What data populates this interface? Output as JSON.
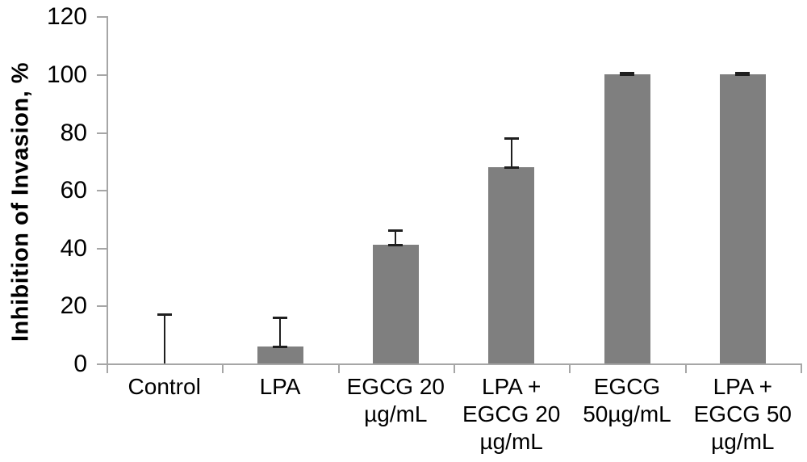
{
  "chart_data": {
    "type": "bar",
    "title": "",
    "ylabel": "Inhibition of Invasion, %",
    "xlabel": "",
    "ylim": [
      0,
      120
    ],
    "yticks": [
      0,
      20,
      40,
      60,
      80,
      100,
      120
    ],
    "categories": [
      [
        "Control"
      ],
      [
        "LPA"
      ],
      [
        "EGCG 20",
        "µg/mL"
      ],
      [
        "LPA +",
        "EGCG 20",
        "µg/mL"
      ],
      [
        "EGCG",
        "50µg/mL"
      ],
      [
        "LPA +",
        "EGCG 50",
        "µg/mL"
      ]
    ],
    "series": [
      {
        "name": "Inhibition of Invasion",
        "values": [
          0,
          6,
          41,
          68,
          100,
          100
        ],
        "errors_plus": [
          17,
          10,
          5,
          10,
          0.5,
          0.5
        ]
      }
    ],
    "grid": false,
    "legend": null,
    "colors": {
      "bar": "#7f7f7f",
      "axis": "#a6a6a6",
      "error": "#1f1f1f",
      "text": "#000000"
    }
  }
}
